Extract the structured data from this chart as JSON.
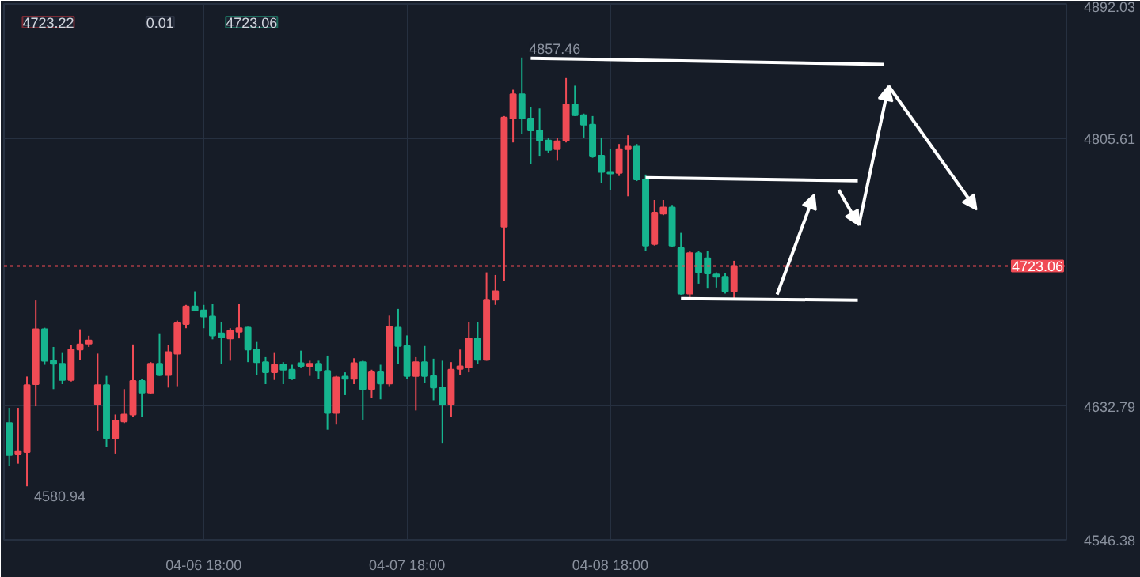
{
  "chart_data": {
    "type": "candlestick",
    "categories": [
      null,
      null,
      null,
      null,
      null,
      null,
      null,
      null,
      null,
      null,
      null,
      null,
      null,
      null,
      null,
      null,
      null,
      null,
      null,
      null,
      null,
      null,
      "04-06 18:00",
      null,
      null,
      null,
      null,
      null,
      null,
      null,
      null,
      null,
      null,
      null,
      null,
      null,
      null,
      null,
      null,
      null,
      null,
      null,
      null,
      null,
      null,
      "04-07 18:00",
      null,
      null,
      null,
      null,
      null,
      null,
      null,
      null,
      null,
      null,
      null,
      null,
      null,
      null,
      null,
      null,
      null,
      null,
      null,
      null,
      null,
      null,
      "04-08 18:00",
      null,
      null,
      null,
      null,
      null,
      null,
      null,
      null,
      null,
      null,
      null,
      null,
      null,
      null,
      null,
      null,
      null,
      null,
      null,
      null,
      null,
      null,
      null,
      null,
      null,
      null,
      null,
      null,
      null,
      null,
      null,
      null,
      null,
      null,
      null,
      null,
      null,
      null,
      null,
      null,
      null,
      null,
      null,
      null,
      null,
      null,
      null,
      null,
      null,
      null,
      null
    ],
    "ohlc": [
      [
        4621.7,
        4631.5,
        4593.8,
        4601.1
      ],
      [
        4601.4,
        4631.5,
        4595.5,
        4603.6
      ],
      [
        4603.0,
        4651.7,
        4580.94,
        4646.2
      ],
      [
        4646.8,
        4700.8,
        4632.5,
        4682.2
      ],
      [
        4682.2,
        4683.2,
        4659.3,
        4661.9
      ],
      [
        4661.9,
        4670.8,
        4643.6,
        4660.0
      ],
      [
        4660.0,
        4667.4,
        4646.8,
        4649.5
      ],
      [
        4649.5,
        4671.8,
        4648.5,
        4669.1
      ],
      [
        4669.1,
        4682.2,
        4662.5,
        4672.4
      ],
      [
        4673.0,
        4678.0,
        4670.8,
        4675.0
      ],
      [
        4633.8,
        4666.5,
        4616.8,
        4646.2
      ],
      [
        4646.2,
        4652.1,
        4606.3,
        4611.9
      ],
      [
        4611.9,
        4627.2,
        4602.0,
        4623.3
      ],
      [
        4622.7,
        4643.6,
        4621.7,
        4627.2
      ],
      [
        4627.2,
        4672.4,
        4625.9,
        4648.8
      ],
      [
        4648.8,
        4650.2,
        4625.9,
        4641.3
      ],
      [
        4641.3,
        4661.0,
        4640.3,
        4660.0
      ],
      [
        4660.0,
        4679.6,
        4652.1,
        4652.7
      ],
      [
        4652.7,
        4671.8,
        4644.6,
        4667.4
      ],
      [
        4666.5,
        4687.8,
        4645.5,
        4686.1
      ],
      [
        4685.5,
        4697.9,
        4682.9,
        4696.9
      ],
      [
        4696.9,
        4706.7,
        4693.7,
        4694.3
      ],
      [
        4694.3,
        4697.9,
        4682.9,
        4690.4
      ],
      [
        4690.4,
        4698.6,
        4675.7,
        4678.2
      ],
      [
        4679.6,
        4687.1,
        4660.0,
        4677.0
      ],
      [
        4676.3,
        4682.9,
        4661.9,
        4681.2
      ],
      [
        4680.6,
        4698.6,
        4676.3,
        4682.9
      ],
      [
        4683.2,
        4683.8,
        4661.0,
        4669.1
      ],
      [
        4669.1,
        4674.0,
        4652.7,
        4661.0
      ],
      [
        4661.0,
        4664.2,
        4646.8,
        4654.4
      ],
      [
        4654.4,
        4667.4,
        4649.5,
        4659.3
      ],
      [
        4659.3,
        4661.0,
        4646.8,
        4656.1
      ],
      [
        4656.1,
        4659.3,
        4649.5,
        4650.5
      ],
      [
        4660.3,
        4668.4,
        4657.6,
        4658.6
      ],
      [
        4658.6,
        4661.9,
        4652.1,
        4660.0
      ],
      [
        4660.0,
        4661.9,
        4650.2,
        4655.4
      ],
      [
        4655.4,
        4665.2,
        4617.4,
        4628.2
      ],
      [
        4628.2,
        4652.1,
        4620.7,
        4651.1
      ],
      [
        4651.7,
        4654.4,
        4639.7,
        4650.2
      ],
      [
        4650.2,
        4663.5,
        4646.8,
        4660.3
      ],
      [
        4661.0,
        4661.9,
        4623.9,
        4643.6
      ],
      [
        4643.6,
        4656.1,
        4638.0,
        4654.4
      ],
      [
        4654.4,
        4659.3,
        4637.0,
        4647.2
      ],
      [
        4647.2,
        4691.0,
        4645.5,
        4683.8
      ],
      [
        4683.2,
        4695.3,
        4660.0,
        4671.4
      ],
      [
        4671.4,
        4678.2,
        4650.2,
        4652.1
      ],
      [
        4652.1,
        4664.2,
        4629.8,
        4661.0
      ],
      [
        4661.0,
        4671.4,
        4647.8,
        4652.1
      ],
      [
        4652.1,
        4663.2,
        4636.4,
        4644.6
      ],
      [
        4644.6,
        4661.9,
        4608.5,
        4633.8
      ],
      [
        4633.8,
        4661.0,
        4625.9,
        4656.1
      ],
      [
        4656.6,
        4669.1,
        4652.7,
        4658.3
      ],
      [
        4657.6,
        4687.1,
        4654.4,
        4676.3
      ],
      [
        4676.3,
        4687.1,
        4660.0,
        4662.5
      ],
      [
        4662.5,
        4718.9,
        4661.9,
        4701.2
      ],
      [
        4701.2,
        4717.2,
        4697.9,
        4706.7
      ],
      [
        4748.4,
        4819.7,
        4713.3,
        4818.7
      ],
      [
        4818.1,
        4836.7,
        4802.7,
        4833.8
      ],
      [
        4833.8,
        4857.46,
        4808.3,
        4818.1
      ],
      [
        4818.1,
        4825.5,
        4788.6,
        4810.5
      ],
      [
        4810.5,
        4824.6,
        4794.1,
        4803.9
      ],
      [
        4803.9,
        4805.6,
        4796.1,
        4797.8
      ],
      [
        4798.4,
        4805.6,
        4790.9,
        4803.4
      ],
      [
        4803.9,
        4844.2,
        4802.7,
        4827.2
      ],
      [
        4827.2,
        4839.3,
        4819.7,
        4820.3
      ],
      [
        4820.3,
        4821.3,
        4805.9,
        4814.2
      ],
      [
        4814.2,
        4819.7,
        4792.8,
        4794.1
      ],
      [
        4794.1,
        4805.9,
        4776.4,
        4783.7
      ],
      [
        4783.7,
        4798.4,
        4772.2,
        4782.7
      ],
      [
        4783.0,
        4801.7,
        4781.1,
        4798.4
      ],
      [
        4798.4,
        4807.3,
        4768.0,
        4800.0
      ],
      [
        4800.0,
        4801.7,
        4777.8,
        4778.8
      ],
      [
        4778.8,
        4782.0,
        4732.9,
        4736.2
      ],
      [
        4737.2,
        4765.6,
        4736.2,
        4757.5
      ],
      [
        4756.8,
        4765.6,
        4755.8,
        4760.7
      ],
      [
        4760.7,
        4762.4,
        4735.2,
        4736.2
      ],
      [
        4734.6,
        4744.4,
        4704.5,
        4705.2
      ],
      [
        4705.2,
        4732.9,
        4701.8,
        4731.3
      ],
      [
        4731.3,
        4732.9,
        4711.6,
        4718.9
      ],
      [
        4728.0,
        4732.9,
        4708.4,
        4718.2
      ],
      [
        4717.5,
        4718.9,
        4709.1,
        4716.0
      ],
      [
        4716.0,
        4718.2,
        4705.2,
        4706.7
      ],
      [
        4706.7,
        4726.4,
        4701.8,
        4723.06
      ],
      null,
      null,
      null,
      null,
      null,
      null,
      null,
      null,
      null,
      null,
      null,
      null,
      null,
      null,
      null,
      null,
      null,
      null,
      null,
      null,
      null,
      null,
      null,
      null,
      null,
      null,
      null,
      null,
      null,
      null,
      null,
      null,
      null,
      null,
      null,
      null,
      null
    ],
    "colors": [
      "#16b58f",
      "#f04b55",
      "#f04b55",
      "#f04b55",
      "#16b58f",
      "#16b58f",
      "#16b58f",
      "#f04b55",
      "#f04b55",
      "#f04b55",
      "#f04b55",
      "#16b58f",
      "#f04b55",
      "#f04b55",
      "#f04b55",
      "#16b58f",
      "#f04b55",
      "#16b58f",
      "#f04b55",
      "#f04b55",
      "#f04b55",
      "#16b58f",
      "#16b58f",
      "#16b58f",
      "#16b58f",
      "#f04b55",
      "#f04b55",
      "#16b58f",
      "#16b58f",
      "#16b58f",
      "#f04b55",
      "#16b58f",
      "#16b58f",
      "#16b58f",
      "#f04b55",
      "#16b58f",
      "#16b58f",
      "#f04b55",
      "#16b58f",
      "#f04b55",
      "#16b58f",
      "#f04b55",
      "#16b58f",
      "#f04b55",
      "#16b58f",
      "#16b58f",
      "#f04b55",
      "#16b58f",
      "#16b58f",
      "#16b58f",
      "#f04b55",
      "#f04b55",
      "#f04b55",
      "#16b58f",
      "#f04b55",
      "#f04b55",
      "#f04b55",
      "#f04b55",
      "#16b58f",
      "#16b58f",
      "#16b58f",
      "#16b58f",
      "#f04b55",
      "#f04b55",
      "#16b58f",
      "#16b58f",
      "#16b58f",
      "#16b58f",
      "#16b58f",
      "#f04b55",
      "#f04b55",
      "#16b58f",
      "#16b58f",
      "#f04b55",
      "#f04b55",
      "#16b58f",
      "#16b58f",
      "#f04b55",
      "#16b58f",
      "#16b58f",
      "#16b58f",
      "#16b58f",
      "#f04b55",
      null,
      null,
      null,
      null,
      null,
      null,
      null,
      null,
      null,
      null,
      null,
      null,
      null,
      null,
      null,
      null,
      null,
      null,
      null,
      null,
      null,
      null,
      null,
      null,
      null,
      null,
      null,
      null,
      null,
      null,
      null,
      null,
      null,
      null,
      null,
      null,
      null
    ],
    "series": [
      {
        "type": "line",
        "color": "#ffffff",
        "marker": "none",
        "values": [
          null,
          null,
          null,
          null,
          null,
          null,
          null,
          null,
          null,
          null,
          null,
          null,
          null,
          null,
          null,
          null,
          null,
          null,
          null,
          null,
          null,
          null,
          null,
          null,
          null,
          null,
          null,
          null,
          null,
          null,
          null,
          null,
          null,
          null,
          null,
          null,
          null,
          null,
          null,
          null,
          null,
          null,
          null,
          null,
          null,
          null,
          null,
          null,
          null,
          null,
          null,
          null,
          null,
          null,
          null,
          null,
          null,
          null,
          null,
          4857,
          null,
          null,
          null,
          null,
          null,
          null,
          null,
          null,
          null,
          null,
          null,
          null,
          null,
          null,
          null,
          null,
          null,
          null,
          null,
          null,
          null,
          null,
          null,
          null,
          null,
          null,
          null,
          null,
          null,
          null,
          null,
          null,
          null,
          null,
          null,
          null,
          null,
          null,
          null,
          4853,
          null,
          null,
          null,
          null,
          null,
          null,
          null,
          null,
          null,
          null,
          null,
          null,
          null,
          null,
          null,
          null,
          null,
          null,
          null,
          null
        ]
      },
      {
        "type": "line",
        "color": "#ffffff",
        "marker": "none",
        "values": [
          null,
          null,
          null,
          null,
          null,
          null,
          null,
          null,
          null,
          null,
          null,
          null,
          null,
          null,
          null,
          null,
          null,
          null,
          null,
          null,
          null,
          null,
          null,
          null,
          null,
          null,
          null,
          null,
          null,
          null,
          null,
          null,
          null,
          null,
          null,
          null,
          null,
          null,
          null,
          null,
          null,
          null,
          null,
          null,
          null,
          null,
          null,
          null,
          null,
          null,
          null,
          null,
          null,
          null,
          null,
          null,
          null,
          null,
          null,
          null,
          null,
          null,
          null,
          null,
          null,
          null,
          null,
          null,
          null,
          null,
          null,
          null,
          4780,
          null,
          null,
          null,
          null,
          null,
          null,
          null,
          null,
          null,
          null,
          null,
          null,
          null,
          null,
          null,
          null,
          null,
          null,
          null,
          null,
          null,
          null,
          null,
          4778,
          null,
          null,
          null,
          null,
          null,
          null,
          null,
          null,
          null,
          null,
          null,
          null,
          null,
          null,
          null,
          null,
          null,
          null,
          null,
          null,
          null,
          null,
          null
        ]
      },
      {
        "type": "line",
        "color": "#ffffff",
        "marker": "none",
        "values": [
          null,
          null,
          null,
          null,
          null,
          null,
          null,
          null,
          null,
          null,
          null,
          null,
          null,
          null,
          null,
          null,
          null,
          null,
          null,
          null,
          null,
          null,
          null,
          null,
          null,
          null,
          null,
          null,
          null,
          null,
          null,
          null,
          null,
          null,
          null,
          null,
          null,
          null,
          null,
          null,
          null,
          null,
          null,
          null,
          null,
          null,
          null,
          null,
          null,
          null,
          null,
          null,
          null,
          null,
          null,
          null,
          null,
          null,
          null,
          null,
          null,
          null,
          null,
          null,
          null,
          null,
          null,
          null,
          null,
          null,
          null,
          null,
          null,
          null,
          null,
          null,
          4702,
          null,
          null,
          null,
          null,
          null,
          null,
          null,
          null,
          null,
          null,
          null,
          null,
          null,
          null,
          null,
          null,
          null,
          null,
          null,
          4701,
          null,
          null,
          null,
          null,
          null,
          null,
          null,
          null,
          null,
          null,
          null,
          null,
          null,
          null,
          null,
          null,
          null,
          null,
          null,
          null,
          null,
          null,
          null
        ]
      }
    ],
    "ylim": [
      4546.38,
      4892.03
    ],
    "yticks": [
      4546.38,
      4632.79,
      4805.61,
      4892.03
    ],
    "ref_lines": [
      {
        "axis": "y",
        "value": 4723.06,
        "label": "4723.06",
        "color": "#f04b55",
        "line_style": "dotted"
      }
    ],
    "annotations": [
      "4723.22",
      "0.01",
      "4723.06",
      "4580.94",
      "4857.46"
    ],
    "grid": true
  }
}
